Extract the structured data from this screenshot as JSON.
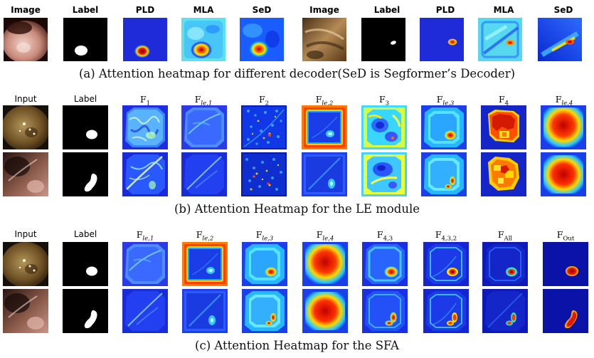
{
  "panel_a": {
    "headers": [
      "Image",
      "Label",
      "PLD",
      "MLA",
      "SeD",
      "Image",
      "Label",
      "PLD",
      "MLA",
      "SeD"
    ],
    "caption": "(a) Attention heatmap for different decoder(SeD is Segformer’s Decoder)"
  },
  "panel_b": {
    "headers": [
      {
        "base": "Input",
        "sub": ""
      },
      {
        "base": "Label",
        "sub": ""
      },
      {
        "base": "F",
        "sub": "1"
      },
      {
        "base": "F",
        "sub": "le,1"
      },
      {
        "base": "F",
        "sub": "2"
      },
      {
        "base": "F",
        "sub": "le,2"
      },
      {
        "base": "F",
        "sub": "3"
      },
      {
        "base": "F",
        "sub": "le,3"
      },
      {
        "base": "F",
        "sub": "4"
      },
      {
        "base": "F",
        "sub": "le,4"
      }
    ],
    "caption": "(b) Attention Heatmap for the LE module"
  },
  "panel_c": {
    "headers": [
      {
        "base": "Input",
        "sub": ""
      },
      {
        "base": "Label",
        "sub": ""
      },
      {
        "base": "F",
        "sub": "le,1"
      },
      {
        "base": "F",
        "sub": "le,2"
      },
      {
        "base": "F",
        "sub": "le,3"
      },
      {
        "base": "F",
        "sub": "le,4"
      },
      {
        "base": "F",
        "sub": "4,3"
      },
      {
        "base": "F",
        "sub": "4,3,2"
      },
      {
        "base": "F",
        "sub": "All"
      },
      {
        "base": "F",
        "sub": "Out"
      }
    ],
    "caption": "(c) Attention Heatmap for the SFA"
  },
  "colors": {
    "jet_dark_blue": "#00008f",
    "jet_blue": "#0033ff",
    "jet_cyan": "#33ccff",
    "jet_yellow": "#ffee00",
    "jet_red": "#e41a1a",
    "endoscope_brown": "#7a5a3a",
    "label_white": "#ffffff",
    "label_black": "#000000"
  }
}
